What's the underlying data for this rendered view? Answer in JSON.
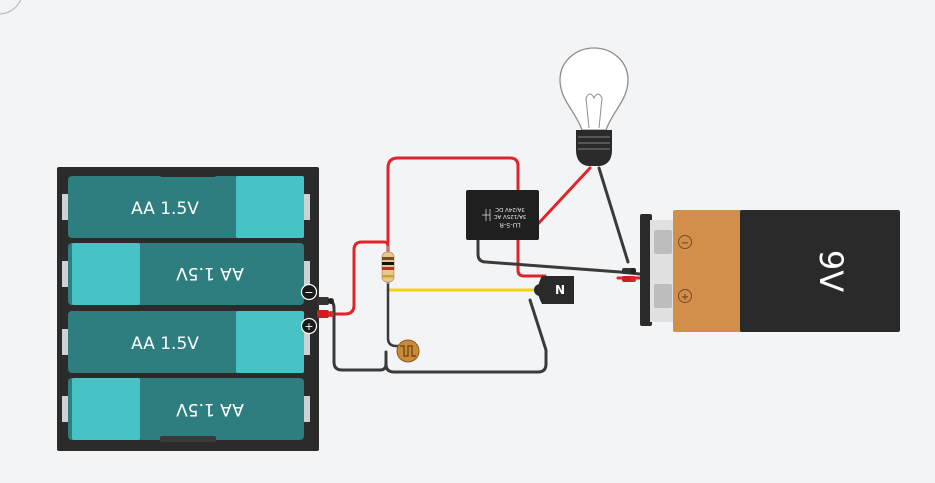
{
  "battery_pack": {
    "cells": [
      {
        "label": "AA 1.5V",
        "orientation": "normal"
      },
      {
        "label": "AA 1.5V",
        "orientation": "flipped"
      },
      {
        "label": "AA 1.5V",
        "orientation": "normal"
      },
      {
        "label": "AA 1.5V",
        "orientation": "flipped"
      }
    ],
    "neg_symbol": "−",
    "pos_symbol": "+"
  },
  "relay": {
    "lines": [
      "LU-5-R",
      "3A/125V AC",
      "3A/24V DC"
    ]
  },
  "transistor": {
    "label": "N"
  },
  "battery_9v": {
    "label": "9V",
    "neg_symbol": "−",
    "pos_symbol": "+"
  },
  "colors": {
    "background": "#f3f4f6",
    "battery_pack_body": "#2b2b2b",
    "aa_cell_dark": "#2e7e80",
    "aa_cell_light": "#47c3c6",
    "wire_red": "#e1242a",
    "wire_black": "#3a3a3a",
    "wire_yellow": "#f0d21c",
    "battery_9v_copper": "#d28e4b",
    "battery_9v_black": "#2a2a2a",
    "relay_body": "#1f1f1f",
    "transistor_body": "#2a2a2a"
  }
}
